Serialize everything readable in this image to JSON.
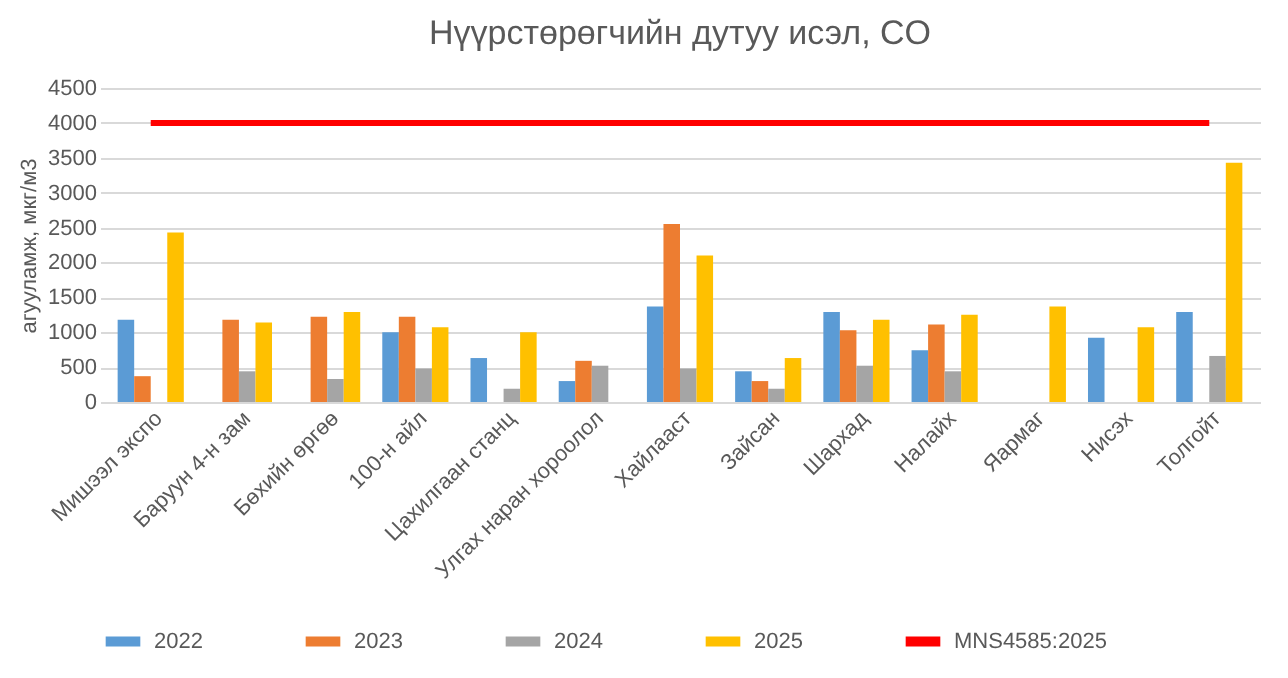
{
  "chart_data": {
    "type": "bar",
    "title": "Нүүрстөрөгчийн дутуу исэл, CO",
    "ylabel": "агууламж, мкг/м3",
    "categories": [
      "Мишээл экспо",
      "Баруун 4-н зам",
      "Бөхийн өргөө",
      "100-н айл",
      "Цахилгаан станц",
      "Улгах наран хороолол",
      "Хайлааст",
      "Зайсан",
      "Шархад",
      "Налайх",
      "Яармаг",
      "Нисэх",
      "Толгойт"
    ],
    "series": [
      {
        "name": "2022",
        "color": "#5b9bd5",
        "values": [
          1180,
          null,
          null,
          1000,
          630,
          300,
          1370,
          440,
          1290,
          740,
          null,
          920,
          1290
        ]
      },
      {
        "name": "2023",
        "color": "#ed7d31",
        "values": [
          370,
          1180,
          1220,
          1220,
          null,
          590,
          2550,
          300,
          1030,
          1110,
          null,
          null,
          null
        ]
      },
      {
        "name": "2024",
        "color": "#a5a5a5",
        "values": [
          null,
          440,
          330,
          480,
          190,
          520,
          480,
          190,
          520,
          440,
          null,
          null,
          660
        ]
      },
      {
        "name": "2025",
        "color": "#ffc000",
        "values": [
          2430,
          1140,
          1290,
          1070,
          1000,
          null,
          2100,
          630,
          1180,
          1250,
          1370,
          1070,
          3430
        ]
      },
      {
        "name": "MNS4585:2025",
        "color": "#ff0000",
        "type": "line",
        "values": [
          4000,
          4000,
          4000,
          4000,
          4000,
          4000,
          4000,
          4000,
          4000,
          4000,
          4000,
          4000,
          4000
        ]
      }
    ],
    "ylim": [
      0,
      4500
    ],
    "yticks": [
      0,
      500,
      1000,
      1500,
      2000,
      2500,
      3000,
      3500,
      4000,
      4500
    ],
    "grid": "y",
    "legend": "bottom"
  }
}
